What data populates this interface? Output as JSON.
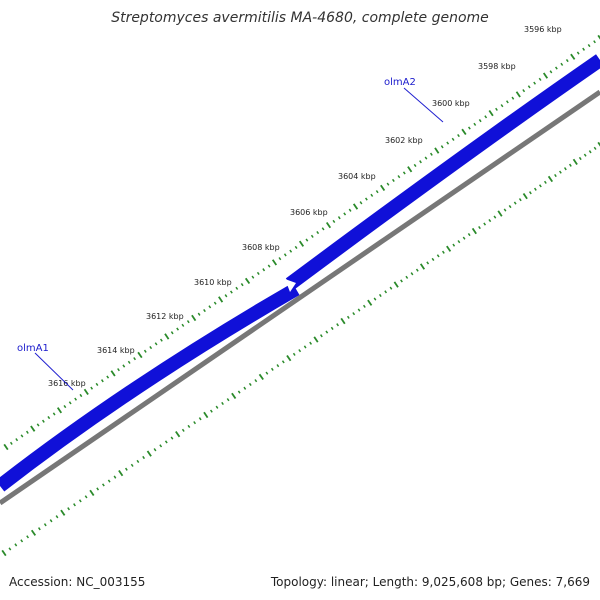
{
  "title": "Streptomyces avermitilis MA-4680, complete genome",
  "footer": {
    "accession": "Accession: NC_003155",
    "stats": "Topology: linear; Length: 9,025,608 bp; Genes: 7,669"
  },
  "ticks": [
    "3596 kbp",
    "3598 kbp",
    "3600 kbp",
    "3602 kbp",
    "3604 kbp",
    "3606 kbp",
    "3608 kbp",
    "3610 kbp",
    "3612 kbp",
    "3614 kbp",
    "3616 kbp"
  ],
  "genes": [
    {
      "name": "olmA2"
    },
    {
      "name": "olmA1"
    }
  ],
  "colors": {
    "gene": "#1010d8",
    "gene_dark": "#0808a0",
    "backbone": "#777777",
    "ticks": "#2a8a2a",
    "leader": "#2020d0"
  }
}
